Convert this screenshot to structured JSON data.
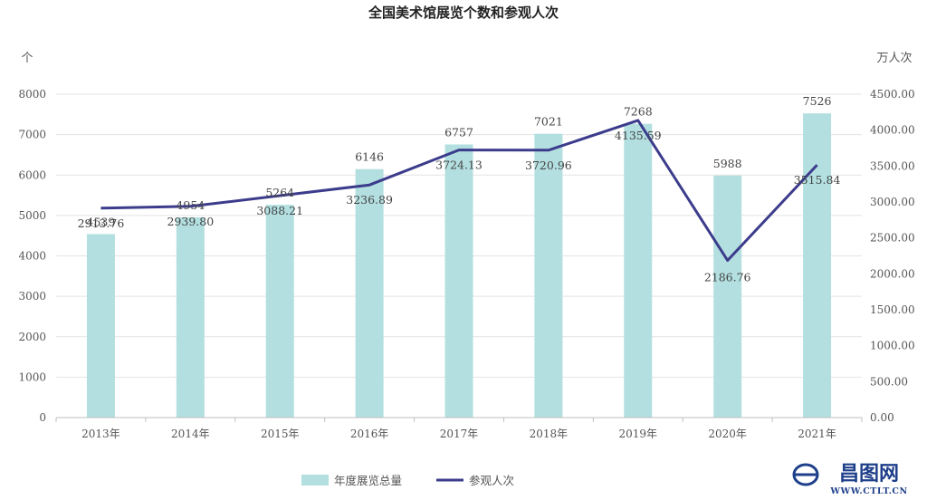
{
  "chart_data": {
    "type": "bar",
    "title": "全国美术馆展览个数和参观人次",
    "categories": [
      "2013年",
      "2014年",
      "2015年",
      "2016年",
      "2017年",
      "2018年",
      "2019年",
      "2020年",
      "2021年"
    ],
    "y_left": {
      "unit": "个",
      "ylim": [
        0,
        8000
      ],
      "ticks": [
        "0",
        "1000",
        "2000",
        "3000",
        "4000",
        "5000",
        "6000",
        "7000",
        "8000"
      ]
    },
    "y_right": {
      "unit": "万人次",
      "ylim": [
        0,
        4500
      ],
      "ticks": [
        "0.00",
        "500.00",
        "1000.00",
        "1500.00",
        "2000.00",
        "2500.00",
        "3000.00",
        "3500.00",
        "4000.00",
        "4500.00"
      ]
    },
    "series": [
      {
        "name": "年度展览总量",
        "type": "bar",
        "axis": "left",
        "color": "#b3dfe0",
        "values": [
          4539,
          4954,
          5264,
          6146,
          6757,
          7021,
          7268,
          5988,
          7526
        ],
        "labels": [
          "4539",
          "4954",
          "5264",
          "6146",
          "6757",
          "7021",
          "7268",
          "5988",
          "7526"
        ]
      },
      {
        "name": "参观人次",
        "type": "line",
        "axis": "right",
        "color": "#3c3c8c",
        "values": [
          2913.76,
          2939.8,
          3088.21,
          3236.89,
          3724.13,
          3720.96,
          4135.59,
          2186.76,
          3515.84
        ],
        "labels": [
          "2913.76",
          "2939.80",
          "3088.21",
          "3236.89",
          "3724.13",
          "3720.96",
          "4135.59",
          "2186.76",
          "3515.84"
        ]
      }
    ],
    "grid": true,
    "legend": "bottom-center"
  },
  "watermark": {
    "main": "昌图网",
    "sub": "WWW.CTLT.CN",
    "color": "#1e3f8a"
  }
}
